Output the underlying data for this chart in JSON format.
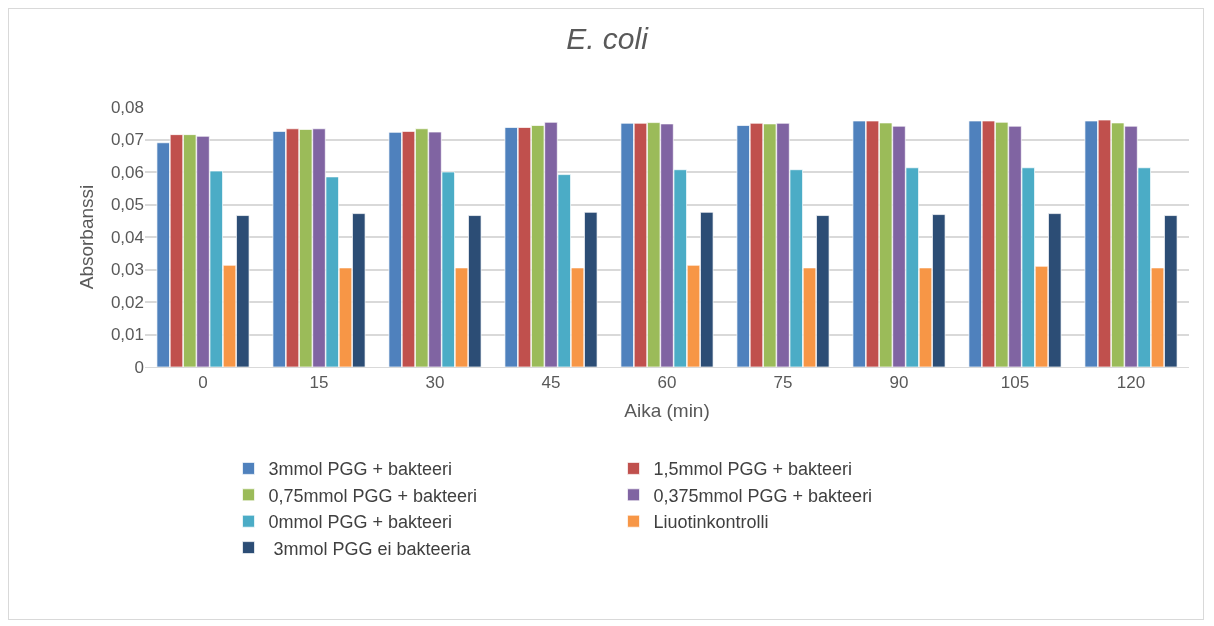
{
  "chart_data": {
    "type": "bar",
    "title": "E. coli",
    "xlabel": "Aika (min)",
    "ylabel": "Absorbanssi",
    "categories": [
      "0",
      "15",
      "30",
      "45",
      "60",
      "75",
      "90",
      "105",
      "120"
    ],
    "series": [
      {
        "name": "3mmol PGG + bakteeri",
        "color": "#4f81bd",
        "values": [
          0.069,
          0.0725,
          0.0722,
          0.0737,
          0.075,
          0.0743,
          0.0757,
          0.0757,
          0.0757
        ]
      },
      {
        "name": "1,5mmol PGG + bakteeri",
        "color": "#c0504d",
        "values": [
          0.0715,
          0.0733,
          0.0725,
          0.0737,
          0.075,
          0.075,
          0.0757,
          0.0757,
          0.076
        ]
      },
      {
        "name": "0,75mmol PGG + bakteeri",
        "color": "#9bbb59",
        "values": [
          0.0715,
          0.0731,
          0.0733,
          0.0743,
          0.0752,
          0.0748,
          0.0751,
          0.0753,
          0.0751
        ]
      },
      {
        "name": "0,375mmol PGG + bakteeri",
        "color": "#8064a2",
        "values": [
          0.071,
          0.0733,
          0.0723,
          0.0753,
          0.0748,
          0.075,
          0.0741,
          0.0741,
          0.0741
        ]
      },
      {
        "name": "0mmol PGG + bakteeri",
        "color": "#4bacc6",
        "values": [
          0.0603,
          0.0585,
          0.06,
          0.0592,
          0.0607,
          0.0607,
          0.0613,
          0.0613,
          0.0613
        ]
      },
      {
        "name": "Liuotinkontrolli",
        "color": "#f79646",
        "values": [
          0.0313,
          0.0305,
          0.0305,
          0.0305,
          0.0313,
          0.0305,
          0.0305,
          0.031,
          0.0305
        ]
      },
      {
        "name": " 3mmol PGG ei bakteeria",
        "color": "#2c4d75",
        "values": [
          0.0466,
          0.0472,
          0.0466,
          0.0476,
          0.0476,
          0.0466,
          0.0469,
          0.0472,
          0.0466
        ]
      }
    ],
    "ylim": [
      0,
      0.08
    ],
    "yticks": [
      0,
      {
        "value": 0.01,
        "label": "0,01"
      },
      {
        "value": 0.02,
        "label": "0,02"
      },
      {
        "value": 0.03,
        "label": "0,03"
      },
      {
        "value": 0.04,
        "label": "0,04"
      },
      {
        "value": 0.05,
        "label": "0,05"
      },
      {
        "value": 0.06,
        "label": "0,06"
      },
      {
        "value": 0.07,
        "label": "0,07"
      },
      {
        "value": 0.08,
        "label": "0,08"
      }
    ],
    "grid": "y",
    "legend": "bottom"
  }
}
